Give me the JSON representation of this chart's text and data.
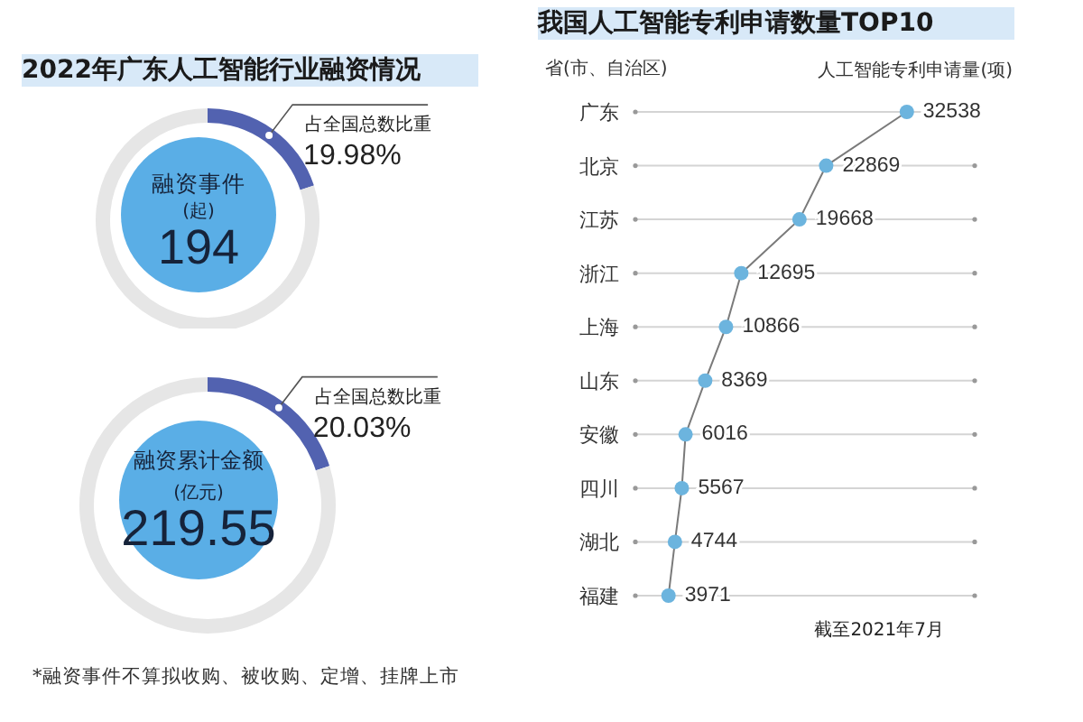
{
  "chart_data": [
    {
      "type": "donut",
      "title": "2022年广东人工智能行业融资情况",
      "categories": [
        "占全国总数比重",
        null
      ],
      "values": [
        19.98,
        80.02
      ],
      "colors": [
        "#5262b0",
        "#e6e6e6"
      ],
      "value_labels": [
        "19.98%",
        null
      ],
      "annotations": [
        "融资事件",
        "(起)",
        "194"
      ]
    },
    {
      "type": "donut",
      "categories": [
        "占全国总数比重",
        null
      ],
      "values": [
        20.03,
        79.97
      ],
      "colors": [
        "#5262b0",
        "#e6e6e6"
      ],
      "value_labels": [
        "20.03%",
        null
      ],
      "annotations": [
        "融资累计金额",
        "(亿元)",
        "219.55",
        "*融资事件不算拟收购、被收购、定增、挂牌上市"
      ]
    },
    {
      "type": "line",
      "orientation": "horizontal",
      "title": "我国人工智能专利申请数量TOP10",
      "ylabel": "省(市、自治区)",
      "xlabel": "人工智能专利申请量(项)",
      "categories": [
        "广东",
        "北京",
        "江苏",
        "浙江",
        "上海",
        "山东",
        "安徽",
        "四川",
        "湖北",
        "福建"
      ],
      "series": [
        {
          "color": "#6cb4de",
          "values": [
            32538,
            22869,
            19668,
            12695,
            10866,
            8369,
            6016,
            5567,
            4744,
            3971
          ]
        }
      ],
      "data_labels": true,
      "marker": "circle",
      "grid": "y",
      "tick_labels": "y",
      "annotations": [
        "截至2021年7月"
      ]
    }
  ]
}
